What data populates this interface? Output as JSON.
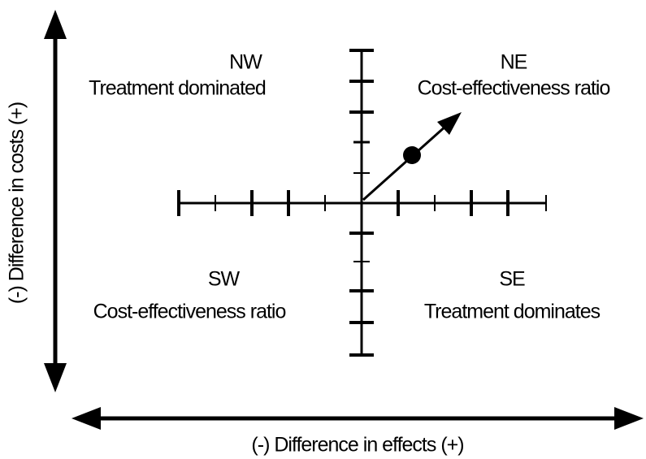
{
  "quadrants": {
    "nw": {
      "code": "NW",
      "label": "Treatment dominated"
    },
    "ne": {
      "code": "NE",
      "label": "Cost-effectiveness ratio"
    },
    "sw": {
      "code": "SW",
      "label": "Cost-effectiveness ratio"
    },
    "se": {
      "code": "SE",
      "label": "Treatment dominates"
    }
  },
  "axes": {
    "x_label": "(-)  Difference in effects (+)",
    "y_label": "(-)  Difference in costs  (+)"
  }
}
